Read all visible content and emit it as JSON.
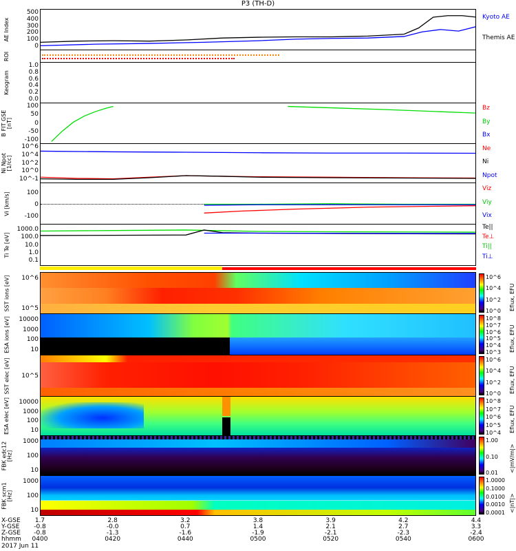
{
  "title": "P3 (TH-D)",
  "panels": {
    "ae": {
      "label": "AE Index",
      "ticks": [
        "500",
        "400",
        "300",
        "200",
        "100",
        "0"
      ],
      "legend": [
        "Kyoto AE",
        "Themis AE"
      ]
    },
    "roi": {
      "label": "ROI"
    },
    "keogram": {
      "label": "Keogram",
      "ticks": [
        "1.0",
        "0.8",
        "0.6",
        "0.4",
        "0.2",
        "0.0"
      ]
    },
    "bfield": {
      "label": "B FIT GSE [nT]",
      "ticks": [
        "100",
        "50",
        "0",
        "-50",
        "-100"
      ],
      "legend": [
        "Bz",
        "By",
        "Bx"
      ]
    },
    "density": {
      "label": "Ni Npot [1/cc]",
      "ticks": [
        "10^6",
        "10^4",
        "10^2",
        "10^0",
        "10^-1"
      ],
      "legend": [
        "Ne",
        "Ni",
        "Npot"
      ]
    },
    "velocity": {
      "label": "Vi [km/s]",
      "ticks": [
        "100",
        "0",
        "-100"
      ],
      "legend": [
        "Viz",
        "Viy",
        "Vix"
      ]
    },
    "temperature": {
      "label": "Ti Te [eV]",
      "ticks": [
        "1000.0",
        "100.0",
        "10.0",
        "1.0",
        "0.1"
      ],
      "legend": [
        "Te||",
        "Te⊥",
        "Ti||",
        "Ti⊥"
      ]
    },
    "sst_i": {
      "label": "SST ions [eV]",
      "ticks": [
        "10^6",
        "10^5"
      ],
      "cbar": [
        "10^6",
        "10^4",
        "10^2",
        "10^0"
      ],
      "cbar_title": "Eflux, EFU"
    },
    "esa_i": {
      "label": "ESA ions [eV]",
      "ticks": [
        "10000",
        "1000",
        "100",
        "10"
      ],
      "cbar": [
        "10^8",
        "10^7",
        "10^6",
        "10^5",
        "10^4",
        "10^3"
      ],
      "cbar_title": "Eflux, EFU"
    },
    "sst_e": {
      "label": "SST elec [eV]",
      "ticks": [
        "10^5"
      ],
      "cbar": [
        "10^6",
        "10^4",
        "10^2",
        "10^0"
      ],
      "cbar_title": "Eflux, EFU"
    },
    "esa_e": {
      "label": "ESA elec [eV]",
      "ticks": [
        "10000",
        "1000",
        "100",
        "10"
      ],
      "cbar": [
        "10^8",
        "10^7",
        "10^6",
        "10^5",
        "10^4"
      ],
      "cbar_title": "Eflux, EFU"
    },
    "fbk_e": {
      "label": "FBK edc12 [Hz]",
      "ticks": [
        "1000",
        "100",
        "10"
      ],
      "cbar": [
        "1.00",
        "0.10",
        "0.01"
      ],
      "cbar_title": "<|mV/m|>"
    },
    "fbk_b": {
      "label": "FBK scm1 [Hz]",
      "ticks": [
        "1000",
        "100",
        "10"
      ],
      "cbar": [
        "1.0000",
        "0.1000",
        "0.0100",
        "0.0010",
        "0.0001"
      ],
      "cbar_title": "<|nT|>"
    }
  },
  "axis": {
    "rows": [
      {
        "label": "X-GSE",
        "values": [
          "1.7",
          "2.8",
          "3.2",
          "3.8",
          "3.9",
          "4.2",
          "4.4"
        ]
      },
      {
        "label": "Y-GSE",
        "values": [
          "-0.8",
          "-0.0",
          "0.7",
          "1.4",
          "2.1",
          "2.7",
          "3.3"
        ]
      },
      {
        "label": "Z-GSE",
        "values": [
          "-0.8",
          "-1.3",
          "-1.6",
          "-1.9",
          "-2.1",
          "-2.3",
          "-2.4"
        ]
      },
      {
        "label": "hhmm",
        "values": [
          "0400",
          "0420",
          "0440",
          "0500",
          "0520",
          "0540",
          "0600"
        ]
      }
    ],
    "date": "2017 Jun 11"
  },
  "colors": {
    "kyoto": "#0000ff",
    "themis": "#000000",
    "bz": "#ff0000",
    "by": "#00dd00",
    "bx": "#0000ff"
  },
  "chart_data": {
    "type": "line",
    "x_unit": "minutes after 0400 UT",
    "xlim": [
      0,
      120
    ],
    "ae": {
      "ylim": [
        0,
        500
      ],
      "series": [
        {
          "name": "Themis AE",
          "x": [
            0,
            10,
            20,
            30,
            40,
            50,
            60,
            70,
            80,
            90,
            100,
            104,
            108,
            112,
            116,
            120
          ],
          "y": [
            95,
            110,
            115,
            110,
            125,
            150,
            160,
            165,
            165,
            175,
            200,
            280,
            420,
            440,
            440,
            420
          ]
        },
        {
          "name": "Kyoto AE",
          "x": [
            0,
            15,
            30,
            45,
            60,
            70,
            80,
            90,
            100,
            105,
            110,
            115,
            120
          ],
          "y": [
            50,
            70,
            80,
            95,
            115,
            135,
            145,
            150,
            170,
            230,
            260,
            240,
            300
          ]
        }
      ]
    },
    "bfield": {
      "ylim": [
        -110,
        110
      ],
      "series": [
        {
          "name": "By",
          "x": [
            3,
            6,
            9,
            12,
            15,
            18,
            20
          ],
          "y": [
            -100,
            -40,
            10,
            45,
            70,
            90,
            100
          ]
        },
        {
          "name": "By",
          "x": [
            68,
            80,
            95,
            110,
            120
          ],
          "y": [
            100,
            92,
            82,
            70,
            62
          ]
        }
      ]
    },
    "density": {
      "ylog": true,
      "ylim": [
        0.1,
        1000000
      ],
      "series": [
        {
          "name": "Ni",
          "x": [
            0,
            20,
            40,
            60,
            80,
            100,
            120
          ],
          "y": [
            80000,
            60000,
            50000,
            40000,
            35000,
            35000,
            32000
          ]
        },
        {
          "name": "Ne",
          "x": [
            0,
            10,
            20,
            30,
            40,
            50,
            60,
            80,
            100,
            120
          ],
          "y": [
            1,
            0.6,
            0.5,
            1,
            2,
            1.5,
            1.2,
            1,
            0.8,
            0.7
          ]
        },
        {
          "name": "Npot",
          "x": [
            0,
            10,
            20,
            30,
            40,
            50,
            60,
            80,
            100,
            120
          ],
          "y": [
            0.5,
            0.4,
            0.4,
            0.8,
            2,
            1.5,
            1,
            0.8,
            0.7,
            0.6
          ]
        }
      ]
    },
    "velocity": {
      "ylim": [
        -200,
        200
      ],
      "series": [
        {
          "name": "Viy",
          "x": [
            45,
            60,
            80,
            100,
            120
          ],
          "y": [
            0,
            0,
            5,
            0,
            0
          ]
        },
        {
          "name": "Vix",
          "x": [
            45,
            60,
            80,
            100,
            120
          ],
          "y": [
            -10,
            -5,
            -5,
            -5,
            -5
          ]
        },
        {
          "name": "Viz",
          "x": [
            45,
            55,
            70,
            90,
            110,
            120
          ],
          "y": [
            -90,
            -70,
            -50,
            -30,
            -20,
            -15
          ]
        }
      ]
    },
    "temperature": {
      "ylog": true,
      "ylim": [
        0.05,
        5000
      ],
      "series": [
        {
          "name": "Ti||",
          "x": [
            0,
            20,
            40,
            60,
            80,
            100,
            120
          ],
          "y": [
            1100,
            1300,
            1500,
            1000,
            900,
            850,
            800
          ]
        },
        {
          "name": "Te||",
          "x": [
            0,
            20,
            40,
            45,
            50,
            60,
            80,
            100,
            120
          ],
          "y": [
            300,
            320,
            350,
            1500,
            700,
            600,
            550,
            500,
            480
          ]
        },
        {
          "name": "Ti⊥",
          "x": [
            45,
            60,
            80,
            100,
            120
          ],
          "y": [
            600,
            600,
            580,
            550,
            550
          ]
        }
      ]
    }
  }
}
